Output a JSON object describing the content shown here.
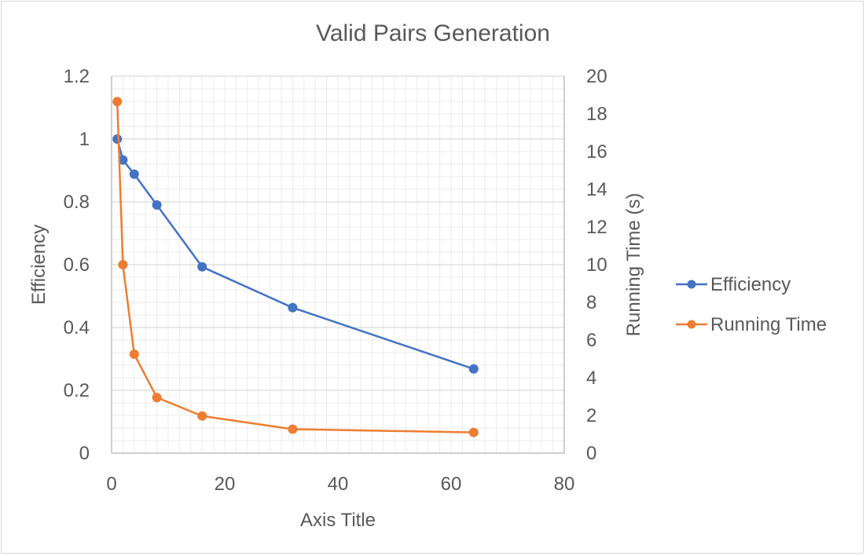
{
  "chart_data": {
    "type": "line",
    "title": "Valid Pairs Generation",
    "xlabel": "Axis Title",
    "ylabel": "Efficiency",
    "y2label": "Running Time (s)",
    "xlim": [
      0,
      80
    ],
    "ylim": [
      0,
      1.2
    ],
    "y2lim": [
      0,
      20
    ],
    "x_ticks": [
      "0",
      "20",
      "40",
      "60",
      "80"
    ],
    "y_ticks": [
      "0",
      "0.2",
      "0.4",
      "0.6",
      "0.8",
      "1",
      "1.2"
    ],
    "y2_ticks": [
      "0",
      "2",
      "4",
      "6",
      "8",
      "10",
      "12",
      "14",
      "16",
      "18",
      "20"
    ],
    "grid": true,
    "legend_position": "right",
    "series": [
      {
        "name": "Efficiency",
        "axis": "left",
        "color": "#4472c4",
        "x": [
          1,
          2,
          4,
          8,
          16,
          32,
          64
        ],
        "values": [
          1.0,
          0.933,
          0.888,
          0.79,
          0.593,
          0.463,
          0.268
        ]
      },
      {
        "name": "Running Time",
        "axis": "right",
        "color": "#ed7d31",
        "x": [
          1,
          2,
          4,
          8,
          16,
          32,
          64
        ],
        "values": [
          18.65,
          10.0,
          5.25,
          2.95,
          1.97,
          1.27,
          1.1
        ]
      }
    ]
  }
}
